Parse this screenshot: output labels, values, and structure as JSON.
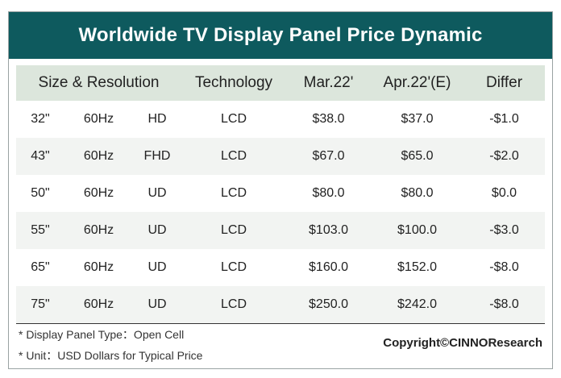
{
  "title": "Worldwide TV Display Panel Price Dynamic",
  "header": {
    "size_resolution": "Size & Resolution",
    "technology": "Technology",
    "mar": "Mar.22'",
    "apr": "Apr.22'(E)",
    "differ": "Differ"
  },
  "rows": [
    {
      "size": "32\"",
      "hz": "60Hz",
      "res": "HD",
      "tech": "LCD",
      "mar": "$38.0",
      "apr": "$37.0",
      "differ": "-$1.0"
    },
    {
      "size": "43\"",
      "hz": "60Hz",
      "res": "FHD",
      "tech": "LCD",
      "mar": "$67.0",
      "apr": "$65.0",
      "differ": "-$2.0"
    },
    {
      "size": "50\"",
      "hz": "60Hz",
      "res": "UD",
      "tech": "LCD",
      "mar": "$80.0",
      "apr": "$80.0",
      "differ": "$0.0"
    },
    {
      "size": "55\"",
      "hz": "60Hz",
      "res": "UD",
      "tech": "LCD",
      "mar": "$103.0",
      "apr": "$100.0",
      "differ": "-$3.0"
    },
    {
      "size": "65\"",
      "hz": "60Hz",
      "res": "UD",
      "tech": "LCD",
      "mar": "$160.0",
      "apr": "$152.0",
      "differ": "-$8.0"
    },
    {
      "size": "75\"",
      "hz": "60Hz",
      "res": "UD",
      "tech": "LCD",
      "mar": "$250.0",
      "apr": "$242.0",
      "differ": "-$8.0"
    }
  ],
  "notes": {
    "panel_type": "* Display Panel Type：Open Cell",
    "unit": "* Unit：USD Dollars for Typical Price"
  },
  "copyright": "Copyright©CINNOResearch",
  "colors": {
    "title_bg": "#0e5a5e",
    "header_bg": "#dce6dc"
  }
}
